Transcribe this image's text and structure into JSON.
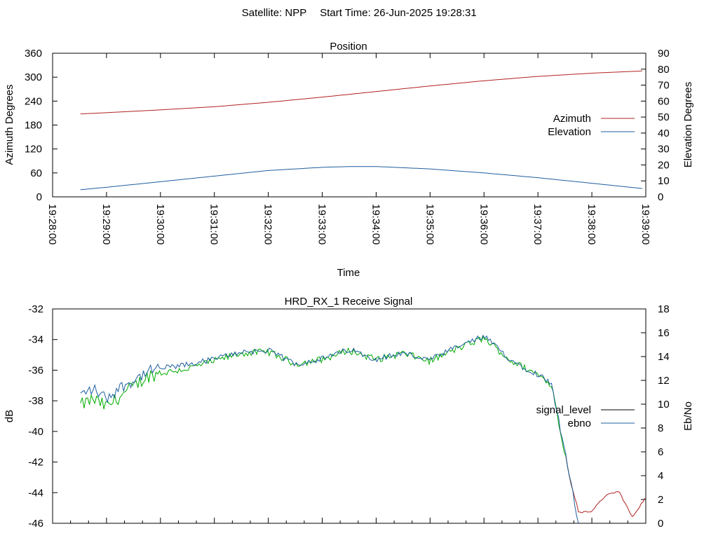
{
  "header": {
    "satellite": "Satellite: NPP",
    "start_time": "Start Time: 26-Jun-2025 19:28:31"
  },
  "colors": {
    "azimuth": "#b22222",
    "elevation": "#1f5f9f",
    "signal_level": "#000000",
    "ebno": "#1f5f9f",
    "signal_green": "#00b000",
    "red_tail": "#b22222"
  },
  "chart_data": [
    {
      "type": "line",
      "title": "Position",
      "xlabel": "Time",
      "ylabel": "Azimuth Degrees",
      "y2label": "Elevation Degrees",
      "xlim": [
        "19:28:00",
        "19:39:00"
      ],
      "ylim": [
        0,
        360
      ],
      "y2lim": [
        0,
        90
      ],
      "x_ticks": [
        "19:28:00",
        "19:29:00",
        "19:30:00",
        "19:31:00",
        "19:32:00",
        "19:33:00",
        "19:34:00",
        "19:35:00",
        "19:36:00",
        "19:37:00",
        "19:38:00",
        "19:39:00"
      ],
      "y_ticks": [
        "0",
        "60",
        "120",
        "180",
        "240",
        "300",
        "360"
      ],
      "y2_ticks": [
        "0",
        "10",
        "20",
        "30",
        "40",
        "50",
        "60",
        "70",
        "80",
        "90"
      ],
      "legend_position": "right",
      "grid": false,
      "series": [
        {
          "name": "Azimuth",
          "axis": "y",
          "x": [
            "19:28:31",
            "19:29:00",
            "19:30:00",
            "19:31:00",
            "19:32:00",
            "19:33:00",
            "19:34:00",
            "19:35:00",
            "19:36:00",
            "19:37:00",
            "19:38:00",
            "19:39:00"
          ],
          "values": [
            208,
            211,
            218,
            226,
            237,
            250,
            264,
            278,
            291,
            302,
            310,
            316
          ]
        },
        {
          "name": "Elevation",
          "axis": "y2",
          "x": [
            "19:28:31",
            "19:29:00",
            "19:30:00",
            "19:31:00",
            "19:32:00",
            "19:33:00",
            "19:33:30",
            "19:34:00",
            "19:35:00",
            "19:36:00",
            "19:37:00",
            "19:38:00",
            "19:39:00"
          ],
          "values": [
            4.5,
            6,
            9.5,
            13,
            16.5,
            18.5,
            19,
            19,
            17.5,
            15,
            12,
            8.5,
            5
          ]
        }
      ]
    },
    {
      "type": "line",
      "title": "HRD_RX_1 Receive Signal",
      "ylabel": "dB",
      "y2label": "Eb/No",
      "xlim": [
        "19:28:00",
        "19:39:00"
      ],
      "ylim": [
        -46,
        -32
      ],
      "y2lim": [
        0,
        18
      ],
      "y_ticks": [
        "-32",
        "-34",
        "-36",
        "-38",
        "-40",
        "-42",
        "-44",
        "-46"
      ],
      "y2_ticks": [
        "0",
        "2",
        "4",
        "6",
        "8",
        "10",
        "12",
        "14",
        "16",
        "18"
      ],
      "legend_position": "right",
      "grid": false,
      "series": [
        {
          "name": "signal_level",
          "axis": "y",
          "x": [
            "19:28:31",
            "19:28:45",
            "19:29:00",
            "19:29:15",
            "19:29:30",
            "19:29:45",
            "19:30:00",
            "19:30:30",
            "19:31:00",
            "19:31:30",
            "19:32:00",
            "19:32:30",
            "19:33:00",
            "19:33:30",
            "19:34:00",
            "19:34:30",
            "19:35:00",
            "19:35:30",
            "19:36:00",
            "19:36:30",
            "19:37:00",
            "19:37:15",
            "19:37:30",
            "19:37:45",
            "19:38:00",
            "19:38:15",
            "19:38:30",
            "19:38:45",
            "19:39:00"
          ],
          "values": [
            -38.3,
            -37.9,
            -38.4,
            -37.7,
            -37.1,
            -36.4,
            -36.2,
            -35.9,
            -35.4,
            -34.9,
            -34.8,
            -35.6,
            -35.3,
            -34.7,
            -35.3,
            -34.9,
            -35.4,
            -34.6,
            -33.9,
            -35.4,
            -36.3,
            -36.9,
            -41.5,
            -45.3,
            -45.2,
            -44.2,
            -43.9,
            -45.6,
            -44.3
          ]
        },
        {
          "name": "ebno",
          "axis": "y2",
          "x": [
            "19:28:31",
            "19:28:45",
            "19:29:00",
            "19:29:15",
            "19:29:30",
            "19:29:45",
            "19:30:00",
            "19:30:30",
            "19:31:00",
            "19:31:30",
            "19:32:00",
            "19:32:30",
            "19:33:00",
            "19:33:30",
            "19:34:00",
            "19:34:30",
            "19:35:00",
            "19:35:30",
            "19:36:00",
            "19:36:30",
            "19:37:00",
            "19:37:15",
            "19:37:30",
            "19:37:45"
          ],
          "values": [
            10.8,
            11.3,
            10.5,
            11.4,
            12.0,
            12.7,
            13.0,
            13.3,
            13.8,
            14.4,
            14.5,
            13.4,
            13.8,
            14.6,
            13.8,
            14.3,
            13.7,
            14.8,
            15.7,
            13.7,
            12.5,
            11.8,
            6.0,
            0.0
          ]
        }
      ]
    }
  ]
}
